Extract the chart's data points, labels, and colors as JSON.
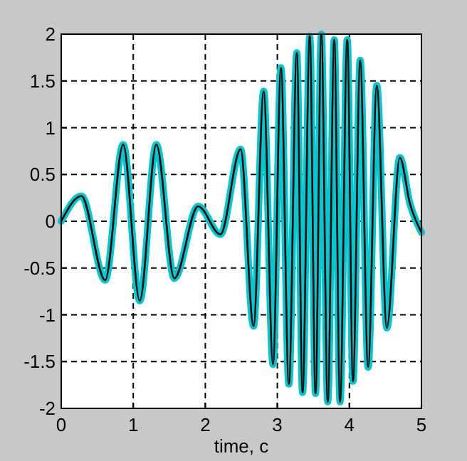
{
  "chart_data": {
    "type": "line",
    "xlabel": "time, c",
    "x": [
      0,
      0.28,
      0.61,
      0.86,
      1.09,
      1.32,
      1.57,
      1.9,
      2.21,
      2.49,
      2.67,
      2.81,
      2.94,
      3.05,
      3.16,
      3.27,
      3.35,
      3.45,
      3.53,
      3.61,
      3.7,
      3.79,
      3.87,
      3.97,
      4.05,
      4.15,
      4.26,
      4.38,
      4.52,
      4.7,
      4.84,
      5
    ],
    "series": [
      {
        "color": "#00c8d0",
        "values": [
          0,
          0.27,
          -0.63,
          0.82,
          -0.85,
          0.82,
          -0.61,
          0.16,
          -0.14,
          0.77,
          -1.12,
          1.39,
          -1.53,
          1.64,
          -1.74,
          1.8,
          -1.83,
          1.98,
          -1.84,
          2,
          -1.93,
          1.94,
          -1.93,
          1.94,
          -1.71,
          1.72,
          -1.56,
          1.45,
          -1.14,
          0.68,
          0.19,
          -0.12
        ]
      },
      {
        "color": "#000000",
        "values": [
          0,
          0.27,
          -0.63,
          0.82,
          -0.85,
          0.82,
          -0.61,
          0.16,
          -0.14,
          0.77,
          -1.12,
          1.39,
          -1.53,
          1.64,
          -1.74,
          1.8,
          -1.83,
          1.98,
          -1.84,
          2,
          -1.93,
          1.94,
          -1.93,
          1.94,
          -1.71,
          1.72,
          -1.56,
          1.45,
          -1.14,
          0.68,
          0.19,
          -0.12
        ]
      }
    ],
    "xlim": [
      0,
      5
    ],
    "xticks": [
      0,
      1,
      2,
      3,
      4,
      5
    ],
    "ylim": [
      -2,
      2
    ],
    "yticks": [
      -2,
      -1.5,
      -1,
      -0.5,
      0,
      0.5,
      1,
      1.5,
      2
    ],
    "grid": true,
    "line_style": "solid",
    "marker": "none"
  }
}
